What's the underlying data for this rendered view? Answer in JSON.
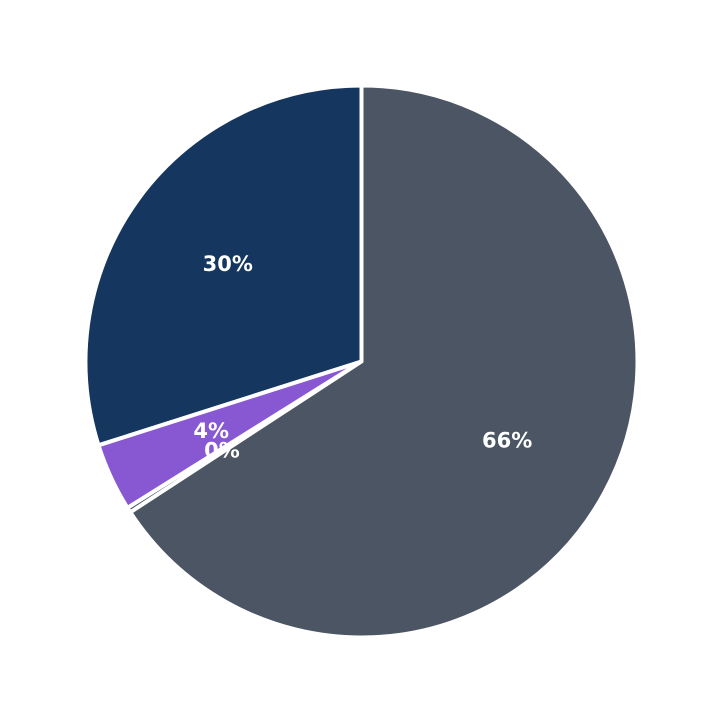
{
  "chart_data": {
    "type": "pie",
    "start_angle_deg": 90,
    "direction": "counterclockwise",
    "slices": [
      {
        "label": "30%",
        "value": 30,
        "color": "#15375f"
      },
      {
        "label": "4%",
        "value": 4,
        "color": "#8858d2"
      },
      {
        "label": "0%",
        "value": 0.3,
        "color": "#3b4a64"
      },
      {
        "label": "66%",
        "value": 66,
        "color": "#4b5563"
      }
    ],
    "legend": "none",
    "title": ""
  }
}
